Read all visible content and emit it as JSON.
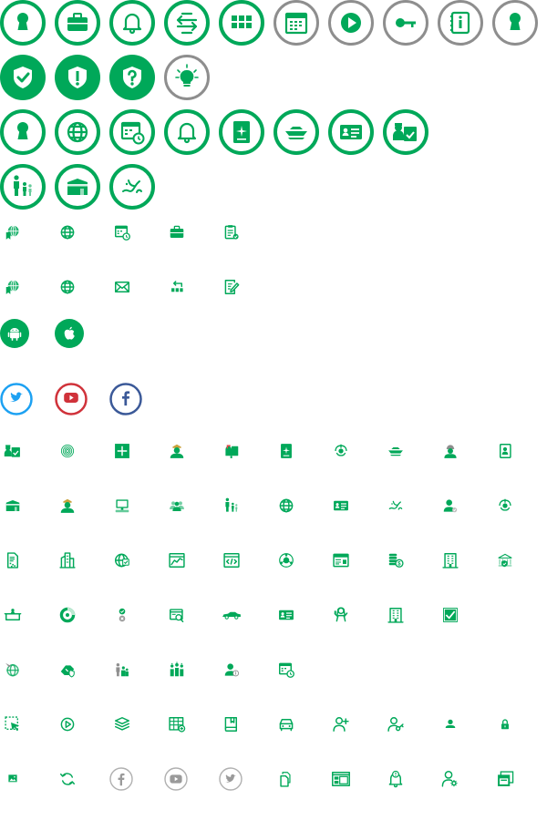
{
  "colors": {
    "primary": "#00A859",
    "gray": "#8E8E8E",
    "twitter": "#1DA1F2",
    "youtube": "#D0323A",
    "facebook": "#3B5998"
  },
  "rows": [
    {
      "name": "ring-icons-row-1",
      "items": [
        {
          "name": "keyhole-icon",
          "style": "ring"
        },
        {
          "name": "briefcase-icon",
          "style": "ring"
        },
        {
          "name": "bell-icon",
          "style": "ring"
        },
        {
          "name": "exchange-arrows-icon",
          "style": "ring"
        },
        {
          "name": "grid-tiles-icon",
          "style": "ring"
        },
        {
          "name": "calendar-icon",
          "style": "ring-gray"
        },
        {
          "name": "play-icon",
          "style": "ring-gray"
        },
        {
          "name": "key-icon",
          "style": "ring-gray"
        },
        {
          "name": "info-booklet-icon",
          "style": "ring-gray"
        },
        {
          "name": "keyhole-icon",
          "style": "ring-gray"
        }
      ]
    },
    {
      "name": "solid-icons-row",
      "items": [
        {
          "name": "shield-check-icon",
          "style": "solid"
        },
        {
          "name": "shield-exclamation-icon",
          "style": "solid"
        },
        {
          "name": "shield-question-icon",
          "style": "solid"
        },
        {
          "name": "lightbulb-icon",
          "style": "ring-gray"
        }
      ]
    },
    {
      "name": "ring-icons-row-2",
      "items": [
        {
          "name": "keyhole-icon",
          "style": "ring"
        },
        {
          "name": "globe-icon",
          "style": "ring"
        },
        {
          "name": "calendar-clock-icon",
          "style": "ring"
        },
        {
          "name": "bell-icon",
          "style": "ring"
        },
        {
          "name": "passport-icon",
          "style": "ring"
        },
        {
          "name": "ship-icon",
          "style": "ring"
        },
        {
          "name": "id-card-icon",
          "style": "ring"
        },
        {
          "name": "officer-id-icon",
          "style": "ring"
        }
      ]
    },
    {
      "name": "ring-icons-row-3",
      "items": [
        {
          "name": "family-icon",
          "style": "ring"
        },
        {
          "name": "kaaba-icon",
          "style": "ring"
        },
        {
          "name": "calligraphy-icon",
          "style": "ring"
        }
      ]
    },
    {
      "name": "small-icons-row-1",
      "items": [
        {
          "name": "globe-bookmark-icon",
          "style": "small"
        },
        {
          "name": "globe-icon",
          "style": "small"
        },
        {
          "name": "calendar-clock-icon",
          "style": "small"
        },
        {
          "name": "briefcase-icon",
          "style": "small"
        },
        {
          "name": "clipboard-check-icon",
          "style": "small"
        }
      ]
    },
    {
      "name": "small-icons-row-2",
      "items": [
        {
          "name": "globe-bookmark-icon",
          "style": "small"
        },
        {
          "name": "globe-icon",
          "style": "small"
        },
        {
          "name": "envelope-icon",
          "style": "small"
        },
        {
          "name": "org-return-icon",
          "style": "small"
        },
        {
          "name": "edit-document-icon",
          "style": "small"
        }
      ]
    },
    {
      "name": "platform-icons-row",
      "items": [
        {
          "name": "android-icon",
          "style": "solid-small"
        },
        {
          "name": "apple-icon",
          "style": "solid-small"
        }
      ]
    },
    {
      "name": "social-icons-row",
      "items": [
        {
          "name": "twitter-icon",
          "style": "social-twitter"
        },
        {
          "name": "youtube-icon",
          "style": "social-youtube"
        },
        {
          "name": "facebook-icon",
          "style": "social-facebook"
        }
      ]
    },
    {
      "name": "small-icons-row-3",
      "items": [
        {
          "name": "officer-id-icon",
          "style": "small"
        },
        {
          "name": "fingerprint-icon",
          "style": "small"
        },
        {
          "name": "plus-box-icon",
          "style": "small"
        },
        {
          "name": "officer-icon",
          "style": "small"
        },
        {
          "name": "mailbox-icon",
          "style": "small"
        },
        {
          "name": "passport-icon",
          "style": "small"
        },
        {
          "name": "emblem-icon",
          "style": "small"
        },
        {
          "name": "ship-icon",
          "style": "small"
        },
        {
          "name": "worker-icon",
          "style": "small"
        },
        {
          "name": "person-document-icon",
          "style": "small"
        }
      ]
    },
    {
      "name": "small-icons-row-4",
      "items": [
        {
          "name": "kaaba-icon",
          "style": "small"
        },
        {
          "name": "officer-icon",
          "style": "small"
        },
        {
          "name": "computer-icon",
          "style": "small"
        },
        {
          "name": "group-icon",
          "style": "small"
        },
        {
          "name": "family-icon",
          "style": "small"
        },
        {
          "name": "globe-icon",
          "style": "small"
        },
        {
          "name": "id-card-icon",
          "style": "small"
        },
        {
          "name": "calligraphy-icon",
          "style": "small"
        },
        {
          "name": "user-verified-icon",
          "style": "small"
        },
        {
          "name": "emblem-icon",
          "style": "small"
        }
      ]
    },
    {
      "name": "small-icons-row-5",
      "items": [
        {
          "name": "document-dots-icon",
          "style": "small"
        },
        {
          "name": "buildings-icon",
          "style": "small"
        },
        {
          "name": "globe-check-icon",
          "style": "small"
        },
        {
          "name": "chart-window-icon",
          "style": "small"
        },
        {
          "name": "code-window-icon",
          "style": "small"
        },
        {
          "name": "globe-network-icon",
          "style": "small"
        },
        {
          "name": "browser-window-icon",
          "style": "small"
        },
        {
          "name": "coins-dollar-icon",
          "style": "small"
        },
        {
          "name": "office-building-icon",
          "style": "small"
        },
        {
          "name": "bank-shield-icon",
          "style": "small"
        }
      ]
    },
    {
      "name": "small-icons-row-6",
      "items": [
        {
          "name": "counter-icon",
          "style": "small"
        },
        {
          "name": "pie-chart-icon",
          "style": "small"
        },
        {
          "name": "approve-reject-icon",
          "style": "small"
        },
        {
          "name": "search-window-icon",
          "style": "small"
        },
        {
          "name": "car-icon",
          "style": "small"
        },
        {
          "name": "id-card-icon",
          "style": "small"
        },
        {
          "name": "woman-icon",
          "style": "small"
        },
        {
          "name": "office-building-icon",
          "style": "small"
        },
        {
          "name": "checkbox-icon",
          "style": "small"
        }
      ]
    },
    {
      "name": "small-icons-row-7",
      "items": [
        {
          "name": "globe-plane-icon",
          "style": "small"
        },
        {
          "name": "handshake-shield-icon",
          "style": "small"
        },
        {
          "name": "family-group-icon",
          "style": "small"
        },
        {
          "name": "workers-group-icon",
          "style": "small"
        },
        {
          "name": "user-info-icon",
          "style": "small"
        },
        {
          "name": "calendar-clock-icon",
          "style": "small"
        }
      ]
    },
    {
      "name": "outline-icons-row-1",
      "items": [
        {
          "name": "selection-cursor-icon",
          "style": "small"
        },
        {
          "name": "play-circle-icon",
          "style": "small"
        },
        {
          "name": "layers-icon",
          "style": "small"
        },
        {
          "name": "table-add-icon",
          "style": "small"
        },
        {
          "name": "book-icon",
          "style": "small"
        },
        {
          "name": "car-front-icon",
          "style": "small"
        },
        {
          "name": "user-add-icon",
          "style": "small"
        },
        {
          "name": "user-key-icon",
          "style": "small"
        },
        {
          "name": "user-icon",
          "style": "small"
        },
        {
          "name": "lock-icon",
          "style": "small"
        }
      ]
    },
    {
      "name": "outline-icons-row-2",
      "items": [
        {
          "name": "image-icon",
          "style": "small"
        },
        {
          "name": "refresh-icon",
          "style": "small"
        },
        {
          "name": "facebook-icon",
          "style": "social-gray"
        },
        {
          "name": "youtube-icon",
          "style": "social-gray"
        },
        {
          "name": "twitter-icon",
          "style": "social-gray"
        },
        {
          "name": "copy-document-icon",
          "style": "small"
        },
        {
          "name": "dashboard-layout-icon",
          "style": "small"
        },
        {
          "name": "bell-alert-icon",
          "style": "small"
        },
        {
          "name": "user-settings-icon",
          "style": "small"
        },
        {
          "name": "windows-icon",
          "style": "small"
        }
      ]
    }
  ]
}
